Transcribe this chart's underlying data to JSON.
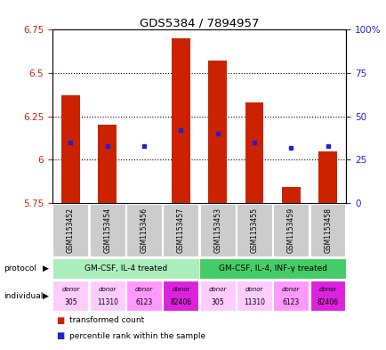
{
  "title": "GDS5384 / 7894957",
  "samples": [
    "GSM1153452",
    "GSM1153454",
    "GSM1153456",
    "GSM1153457",
    "GSM1153453",
    "GSM1153455",
    "GSM1153459",
    "GSM1153458"
  ],
  "bar_values": [
    6.37,
    6.2,
    5.75,
    6.7,
    6.57,
    6.33,
    5.84,
    6.05
  ],
  "percentile_values": [
    6.1,
    6.08,
    6.08,
    6.17,
    6.15,
    6.1,
    6.07,
    6.08
  ],
  "ymin": 5.75,
  "ymax": 6.75,
  "yticks": [
    5.75,
    6.0,
    6.25,
    6.5,
    6.75
  ],
  "ytick_labels": [
    "5.75",
    "6",
    "6.25",
    "6.5",
    "6.75"
  ],
  "right_yticks": [
    0,
    25,
    50,
    75,
    100
  ],
  "right_ytick_labels": [
    "0",
    "25",
    "50",
    "75",
    "100%"
  ],
  "bar_color": "#cc2200",
  "percentile_color": "#2222cc",
  "protocol_groups": [
    {
      "label": "GM-CSF, IL-4 treated",
      "start": 0,
      "end": 3,
      "color": "#aaeebb"
    },
    {
      "label": "GM-CSF, IL-4, INF-γ treated",
      "start": 4,
      "end": 7,
      "color": "#44cc66"
    }
  ],
  "ind_labels": [
    "donor\n305",
    "donor\n11310",
    "donor\n6123",
    "donor\n82406",
    "donor\n305",
    "donor\n11310",
    "donor\n6123",
    "donor\n82406"
  ],
  "ind_bg_colors": [
    "#ffccff",
    "#ffccff",
    "#ff99ff",
    "#dd22dd",
    "#ffccff",
    "#ffccff",
    "#ff99ff",
    "#dd22dd"
  ],
  "legend_items": [
    {
      "color": "#cc2200",
      "label": "transformed count"
    },
    {
      "color": "#2222cc",
      "label": "percentile rank within the sample"
    }
  ],
  "left_axis_color": "#cc2200",
  "right_axis_color": "#2222cc",
  "background_color": "#ffffff",
  "sample_bg_color": "#cccccc"
}
